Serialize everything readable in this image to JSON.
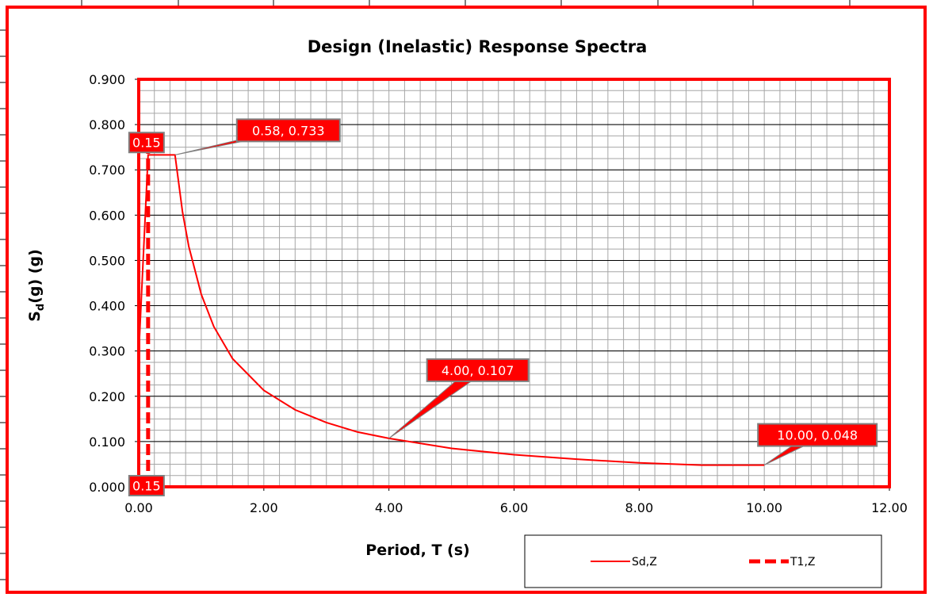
{
  "chart_data": {
    "type": "line",
    "title": "Design (Inelastic) Response Spectra",
    "xlabel": "Period, T (s)",
    "ylabel": {
      "main": "S",
      "sub": "d",
      "rest": "(g) (g)"
    },
    "xlim": [
      0,
      12
    ],
    "ylim": [
      0,
      0.9
    ],
    "xticks": [
      {
        "value": 0,
        "label": "0.00"
      },
      {
        "value": 2,
        "label": "2.00"
      },
      {
        "value": 4,
        "label": "4.00"
      },
      {
        "value": 6,
        "label": "6.00"
      },
      {
        "value": 8,
        "label": "8.00"
      },
      {
        "value": 10,
        "label": "10.00"
      },
      {
        "value": 12,
        "label": "12.00"
      }
    ],
    "yticks": [
      {
        "value": 0,
        "label": "0.000"
      },
      {
        "value": 0.1,
        "label": "0.100"
      },
      {
        "value": 0.2,
        "label": "0.200"
      },
      {
        "value": 0.3,
        "label": "0.300"
      },
      {
        "value": 0.4,
        "label": "0.400"
      },
      {
        "value": 0.5,
        "label": "0.500"
      },
      {
        "value": 0.6,
        "label": "0.600"
      },
      {
        "value": 0.7,
        "label": "0.700"
      },
      {
        "value": 0.8,
        "label": "0.800"
      },
      {
        "value": 0.9,
        "label": "0.900"
      }
    ],
    "grid": true,
    "minor_grid": {
      "x": 0.25,
      "y": 0.025
    },
    "legend": "bottom-right",
    "series": [
      {
        "name": "Sd,Z",
        "color": "#ff0000",
        "dashed": false,
        "x": [
          0,
          0.15,
          0.58,
          0.7,
          0.8,
          1.0,
          1.2,
          1.5,
          2.0,
          2.5,
          3.0,
          3.5,
          4.0,
          5.0,
          6.0,
          7.0,
          8.0,
          9.0,
          10.0
        ],
        "values": [
          0.293,
          0.733,
          0.733,
          0.607,
          0.531,
          0.425,
          0.354,
          0.283,
          0.213,
          0.17,
          0.142,
          0.121,
          0.107,
          0.085,
          0.071,
          0.061,
          0.053,
          0.048,
          0.048
        ],
        "value_labels": [
          null,
          null,
          "0.58, 0.733",
          null,
          null,
          null,
          null,
          null,
          null,
          null,
          null,
          null,
          "4.00, 0.107",
          null,
          null,
          null,
          null,
          null,
          "10.00, 0.048"
        ]
      },
      {
        "name": "T1,Z",
        "color": "#ff0000",
        "dashed": true,
        "x": [
          0.15,
          0.15
        ],
        "values": [
          0,
          0.77
        ],
        "x_value_labels": [
          "0.15",
          "0.15"
        ]
      }
    ]
  }
}
